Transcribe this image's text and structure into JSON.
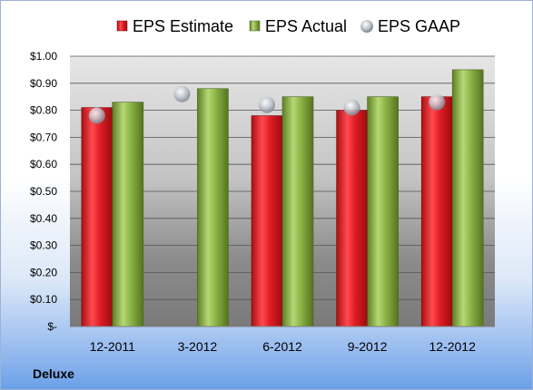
{
  "company": "Deluxe",
  "colors": {
    "estimate": "#d01a22",
    "actual": "#86ad3e",
    "gaap": "#c3c9d1"
  },
  "chart_data": {
    "type": "bar",
    "categories": [
      "12-2011",
      "3-2012",
      "6-2012",
      "9-2012",
      "12-2012"
    ],
    "series": [
      {
        "name": "EPS Estimate",
        "kind": "bar",
        "values": [
          0.81,
          null,
          0.78,
          0.8,
          0.85
        ]
      },
      {
        "name": "EPS Actual",
        "kind": "bar",
        "values": [
          0.83,
          0.88,
          0.85,
          0.85,
          0.95
        ]
      },
      {
        "name": "EPS GAAP",
        "kind": "marker",
        "values": [
          0.78,
          0.86,
          0.82,
          0.81,
          0.83
        ]
      }
    ],
    "yticks": [
      "$-",
      "$0.10",
      "$0.20",
      "$0.30",
      "$0.40",
      "$0.50",
      "$0.60",
      "$0.70",
      "$0.80",
      "$0.90",
      "$1.00"
    ],
    "ylim": [
      0,
      1.0
    ],
    "grid": true,
    "legend_position": "top"
  }
}
